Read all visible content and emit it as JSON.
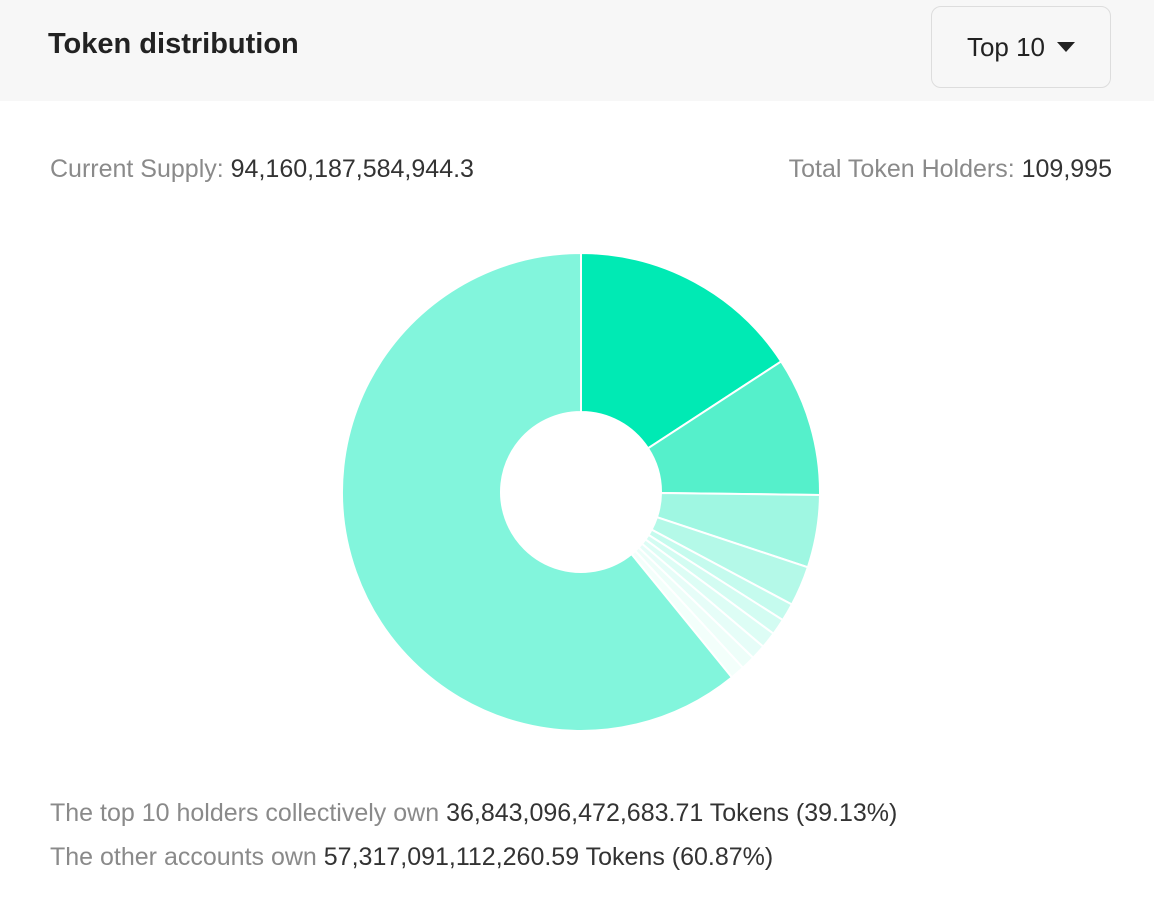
{
  "header": {
    "title": "Token distribution",
    "dropdown": "Top 10"
  },
  "stats": {
    "supply_label": "Current Supply:",
    "supply": "94,160,187,584,944.3",
    "holders_label": "Total Token Holders:",
    "holders": "109,995"
  },
  "chart_data": {
    "type": "donut",
    "values": [
      15.8,
      9.4,
      4.9,
      2.7,
      1.2,
      1.1,
      1.1,
      1.0,
      0.95,
      0.98,
      60.87
    ],
    "colors": [
      "#00eab4",
      "#55f0cb",
      "#9ff7e2",
      "#b4f9e8",
      "#c5fbee",
      "#d3fcf2",
      "#ddfdf5",
      "#e6fdf8",
      "#edfef9",
      "#f3fffb",
      "#82f5dc"
    ]
  },
  "summary": {
    "top_label": "The top 10 holders collectively own",
    "top_amount": "36,843,096,472,683.71 Tokens (39.13%)",
    "other_label": "The other accounts own",
    "other_amount": "57,317,091,112,260.59 Tokens (60.87%)"
  }
}
